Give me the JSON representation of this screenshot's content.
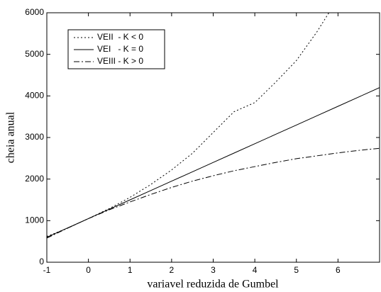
{
  "chart_data": {
    "type": "line",
    "xlabel": "variavel reduzida de Gumbel",
    "ylabel": "cheia anual",
    "x": [
      -1,
      -0.5,
      0,
      0.5,
      1,
      1.5,
      2,
      2.5,
      3,
      3.5,
      4,
      4.5,
      5,
      5.5,
      6,
      6.5,
      7
    ],
    "series": [
      {
        "name": "VEII  - K < 0",
        "color": "#000000",
        "dash": "dotted",
        "values": [
          620,
          820,
          1050,
          1290,
          1560,
          1870,
          2220,
          2620,
          3120,
          3620,
          3840,
          4330,
          4850,
          5550,
          6350,
          null,
          null
        ]
      },
      {
        "name": "VEI   - K = 0",
        "color": "#000000",
        "dash": "solid",
        "values": [
          600,
          825,
          1050,
          1275,
          1500,
          1725,
          1950,
          2175,
          2400,
          2625,
          2850,
          3075,
          3300,
          3525,
          3750,
          3975,
          4200
        ]
      },
      {
        "name": "VEIII - K > 0",
        "color": "#000000",
        "dash": "dashdot",
        "values": [
          580,
          820,
          1050,
          1260,
          1450,
          1630,
          1800,
          1950,
          2080,
          2200,
          2300,
          2400,
          2490,
          2560,
          2630,
          2690,
          2740
        ]
      }
    ],
    "xlim": [
      -1,
      7
    ],
    "xticks": [
      -1,
      0,
      1,
      2,
      3,
      4,
      5,
      6
    ],
    "ylim": [
      0,
      6000
    ],
    "yticks": [
      0,
      1000,
      2000,
      3000,
      4000,
      5000,
      6000
    ],
    "grid": false,
    "legend": "upper left"
  }
}
